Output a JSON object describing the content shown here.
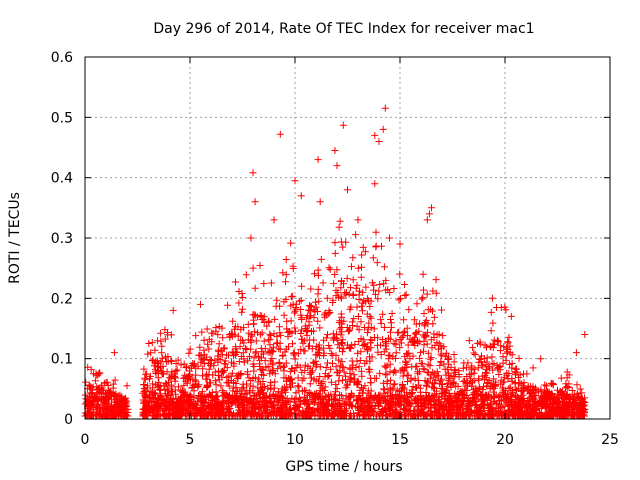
{
  "chart_data": {
    "type": "scatter",
    "title": "Day 296 of 2014, Rate Of TEC Index for receiver mac1",
    "xlabel": "GPS time / hours",
    "ylabel": "ROTI / TECUs",
    "xlim": [
      0,
      25
    ],
    "ylim": [
      0,
      0.6
    ],
    "xticks": [
      0,
      5,
      10,
      15,
      20,
      25
    ],
    "yticks": [
      0,
      0.1,
      0.2,
      0.3,
      0.4,
      0.5,
      0.6
    ],
    "grid": true,
    "marker": "+",
    "color": "#ff0000",
    "envelope": {
      "x": [
        0,
        0.5,
        1,
        1.5,
        2,
        2.6,
        2.8,
        3,
        3.5,
        4,
        4.5,
        5,
        5.5,
        6,
        6.5,
        7,
        7.5,
        8,
        8.5,
        9,
        9.5,
        10,
        10.5,
        11,
        11.5,
        12,
        12.5,
        13,
        13.5,
        14,
        14.5,
        15,
        15.5,
        16,
        16.5,
        17,
        17.5,
        18,
        18.5,
        19,
        19.5,
        20,
        20.5,
        21,
        21.5,
        22,
        22.5,
        23,
        23.5,
        23.8
      ],
      "y": [
        0.06,
        0.05,
        0.045,
        0.04,
        0.02,
        0,
        0.06,
        0.08,
        0.09,
        0.1,
        0.06,
        0.08,
        0.1,
        0.09,
        0.1,
        0.14,
        0.15,
        0.16,
        0.16,
        0.15,
        0.16,
        0.2,
        0.17,
        0.18,
        0.16,
        0.2,
        0.22,
        0.2,
        0.18,
        0.2,
        0.14,
        0.16,
        0.13,
        0.16,
        0.17,
        0.12,
        0.08,
        0.06,
        0.08,
        0.1,
        0.12,
        0.12,
        0.08,
        0.06,
        0.05,
        0.04,
        0.04,
        0.05,
        0.04,
        0.03
      ]
    },
    "outliers": [
      {
        "x": 14.3,
        "y": 0.515
      },
      {
        "x": 12.3,
        "y": 0.487
      },
      {
        "x": 9.3,
        "y": 0.472
      },
      {
        "x": 14.2,
        "y": 0.48
      },
      {
        "x": 13.8,
        "y": 0.47
      },
      {
        "x": 14.0,
        "y": 0.46
      },
      {
        "x": 11.1,
        "y": 0.43
      },
      {
        "x": 11.9,
        "y": 0.445
      },
      {
        "x": 12.0,
        "y": 0.42
      },
      {
        "x": 8.0,
        "y": 0.408
      },
      {
        "x": 10.0,
        "y": 0.395
      },
      {
        "x": 13.8,
        "y": 0.39
      },
      {
        "x": 12.5,
        "y": 0.38
      },
      {
        "x": 16.5,
        "y": 0.35
      },
      {
        "x": 16.3,
        "y": 0.33
      },
      {
        "x": 16.4,
        "y": 0.34
      },
      {
        "x": 8.1,
        "y": 0.36
      },
      {
        "x": 10.3,
        "y": 0.37
      },
      {
        "x": 11.2,
        "y": 0.36
      },
      {
        "x": 9.0,
        "y": 0.33
      },
      {
        "x": 13.0,
        "y": 0.33
      },
      {
        "x": 15.0,
        "y": 0.29
      },
      {
        "x": 7.9,
        "y": 0.3
      },
      {
        "x": 14.5,
        "y": 0.3
      },
      {
        "x": 16.1,
        "y": 0.24
      },
      {
        "x": 19.4,
        "y": 0.2
      },
      {
        "x": 5.5,
        "y": 0.19
      },
      {
        "x": 4.2,
        "y": 0.18
      },
      {
        "x": 1.4,
        "y": 0.11
      },
      {
        "x": 21.7,
        "y": 0.1
      },
      {
        "x": 23.8,
        "y": 0.14
      },
      {
        "x": 23.4,
        "y": 0.11
      },
      {
        "x": 20.3,
        "y": 0.17
      },
      {
        "x": 18.3,
        "y": 0.13
      },
      {
        "x": 17.8,
        "y": 0.08
      },
      {
        "x": 2.0,
        "y": 0.055
      }
    ]
  }
}
